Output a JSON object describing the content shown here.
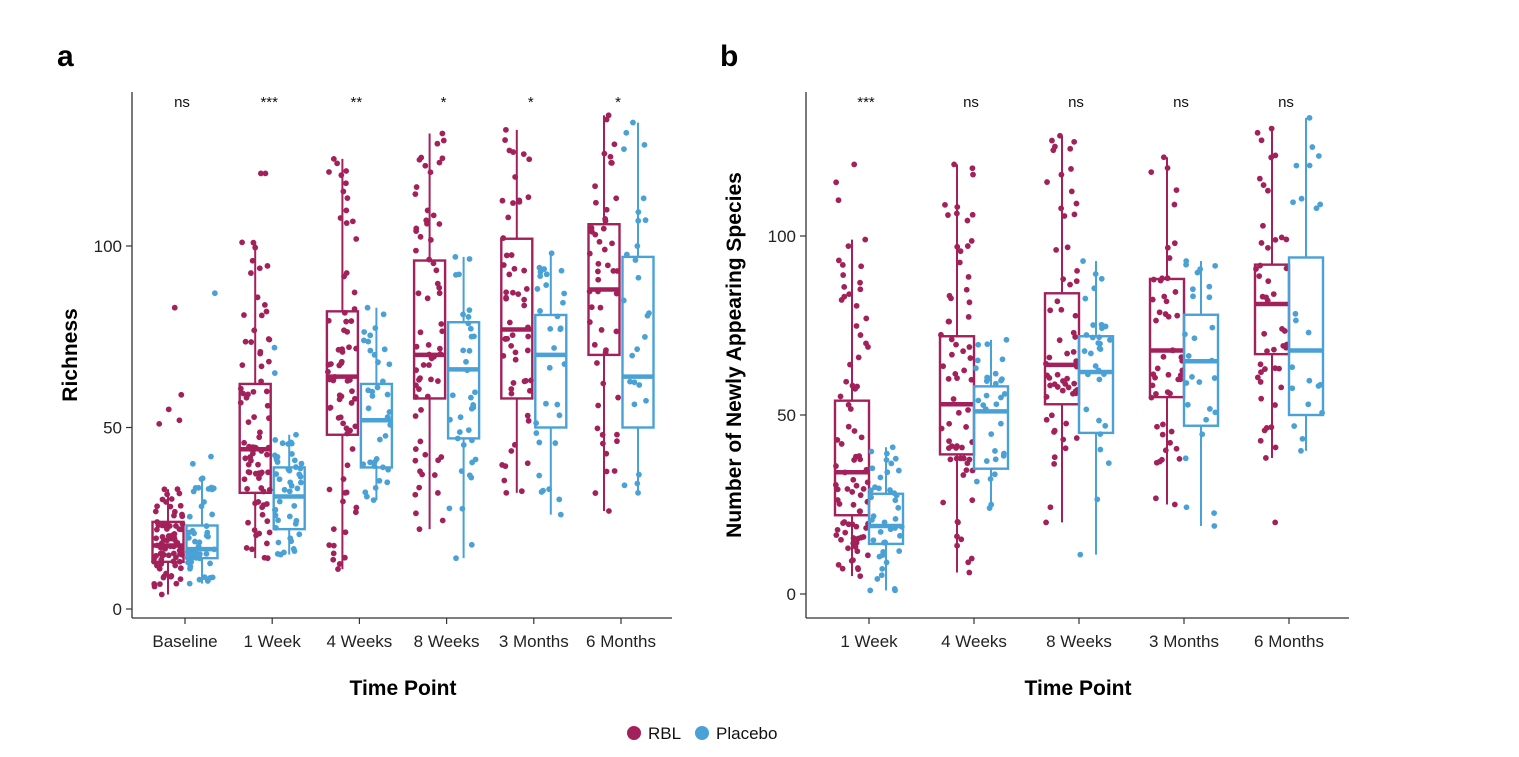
{
  "colors": {
    "rbl": "#a3215a",
    "placebo": "#4aa1d6"
  },
  "legend": [
    {
      "label": "RBL",
      "color_key": "rbl"
    },
    {
      "label": "Placebo",
      "color_key": "placebo"
    }
  ],
  "chart_data": [
    {
      "panel": "a",
      "type": "box",
      "xlabel": "Time Point",
      "ylabel": "Richness",
      "ylim": [
        -3,
        142
      ],
      "yticks": [
        0,
        50,
        100
      ],
      "categories": [
        "Baseline",
        "1 Week",
        "4 Weeks",
        "8 Weeks",
        "3 Months",
        "6 Months"
      ],
      "significance": [
        "ns",
        "***",
        "**",
        "*",
        "*",
        "*"
      ],
      "series": [
        {
          "name": "RBL",
          "color_key": "rbl",
          "n_points": [
            80,
            80,
            70,
            65,
            55,
            50
          ],
          "boxes": [
            {
              "q1": 13,
              "median": 17.5,
              "q3": 24,
              "min": 4,
              "max": 33
            },
            {
              "q1": 32,
              "median": 44,
              "q3": 62,
              "min": 14,
              "max": 101
            },
            {
              "q1": 48,
              "median": 64,
              "q3": 82,
              "min": 11,
              "max": 124
            },
            {
              "q1": 58,
              "median": 70,
              "q3": 96,
              "min": 22,
              "max": 131
            },
            {
              "q1": 58,
              "median": 77,
              "q3": 102,
              "min": 32,
              "max": 132
            },
            {
              "q1": 70,
              "median": 88,
              "q3": 106,
              "min": 27,
              "max": 136
            }
          ],
          "outliers": [
            [
              83,
              59,
              55,
              52,
              51
            ],
            [
              120,
              120
            ],
            [],
            [],
            [],
            []
          ]
        },
        {
          "name": "Placebo",
          "color_key": "placebo",
          "n_points": [
            50,
            45,
            35,
            35,
            30,
            25
          ],
          "boxes": [
            {
              "q1": 14,
              "median": 16.5,
              "q3": 23,
              "min": 7,
              "max": 36
            },
            {
              "q1": 22,
              "median": 31,
              "q3": 39,
              "min": 15,
              "max": 48
            },
            {
              "q1": 39,
              "median": 52,
              "q3": 62,
              "min": 30,
              "max": 83
            },
            {
              "q1": 47,
              "median": 66,
              "q3": 79,
              "min": 14,
              "max": 97
            },
            {
              "q1": 50,
              "median": 70,
              "q3": 81,
              "min": 26,
              "max": 98
            },
            {
              "q1": 50,
              "median": 64,
              "q3": 97,
              "min": 32,
              "max": 134
            }
          ],
          "outliers": [
            [
              87,
              42,
              40
            ],
            [
              72,
              65
            ],
            [],
            [],
            [],
            []
          ]
        }
      ]
    },
    {
      "panel": "b",
      "type": "box",
      "xlabel": "Time Point",
      "ylabel": "Number of Newly Appearing Species",
      "ylim": [
        -4,
        140
      ],
      "yticks": [
        0,
        50,
        100
      ],
      "categories": [
        "1 Week",
        "4 Weeks",
        "8 Weeks",
        "3 Months",
        "6 Months"
      ],
      "significance": [
        "***",
        "ns",
        "ns",
        "ns",
        "ns"
      ],
      "series": [
        {
          "name": "RBL",
          "color_key": "rbl",
          "n_points": [
            80,
            65,
            60,
            50,
            45
          ],
          "boxes": [
            {
              "q1": 22,
              "median": 34,
              "q3": 54,
              "min": 5,
              "max": 99
            },
            {
              "q1": 39,
              "median": 53,
              "q3": 72,
              "min": 6,
              "max": 120
            },
            {
              "q1": 53,
              "median": 64,
              "q3": 84,
              "min": 20,
              "max": 128
            },
            {
              "q1": 55,
              "median": 68,
              "q3": 88,
              "min": 25,
              "max": 122
            },
            {
              "q1": 67,
              "median": 81,
              "q3": 92,
              "min": 38,
              "max": 130
            }
          ],
          "outliers": [
            [
              120,
              115,
              110
            ],
            [],
            [],
            [],
            [
              20
            ]
          ]
        },
        {
          "name": "Placebo",
          "color_key": "placebo",
          "n_points": [
            40,
            30,
            30,
            25,
            20
          ],
          "boxes": [
            {
              "q1": 14,
              "median": 19,
              "q3": 28,
              "min": 1,
              "max": 41
            },
            {
              "q1": 35,
              "median": 51,
              "q3": 58,
              "min": 24,
              "max": 71
            },
            {
              "q1": 45,
              "median": 62,
              "q3": 72,
              "min": 11,
              "max": 93
            },
            {
              "q1": 47,
              "median": 65,
              "q3": 78,
              "min": 19,
              "max": 93
            },
            {
              "q1": 50,
              "median": 68,
              "q3": 94,
              "min": 40,
              "max": 133
            }
          ],
          "outliers": [
            [],
            [],
            [],
            [],
            []
          ]
        }
      ]
    }
  ]
}
